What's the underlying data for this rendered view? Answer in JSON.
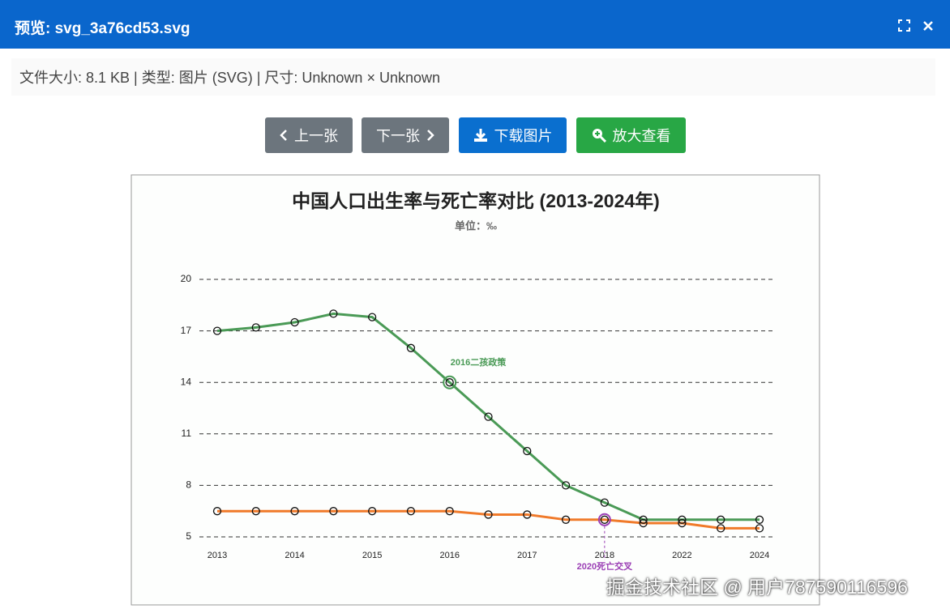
{
  "dialog": {
    "title": "预览: svg_3a76cd53.svg",
    "info": "文件大小: 8.1 KB | 类型: 图片 (SVG) | 尺寸: Unknown × Unknown",
    "buttons": [
      "上一张",
      "下一张",
      "下载图片",
      "放大查看"
    ],
    "watermark": "掘金技术社区 @ 用户787590116596"
  },
  "chart_data": {
    "type": "line",
    "title": "中国人口出生率与死亡率对比 (2013-2024年)",
    "subtitle": "单位：‰",
    "categories": [
      "2013",
      null,
      "2014",
      null,
      "2015",
      null,
      "2016",
      null,
      "2017",
      null,
      "2018",
      null,
      "2022",
      null,
      "2024"
    ],
    "series": [
      {
        "color": "#4a9a56",
        "values": [
          17,
          17.2,
          17.5,
          18,
          17.8,
          16,
          14,
          12,
          10,
          8,
          7,
          6,
          6,
          6,
          6
        ]
      },
      {
        "color": "#f07a2a",
        "values": [
          6.5,
          6.5,
          6.5,
          6.5,
          6.5,
          6.5,
          6.5,
          6.3,
          6.3,
          6,
          6,
          5.8,
          5.8,
          5.5,
          5.5
        ]
      }
    ],
    "ylim": [
      5,
      20
    ],
    "yticks": [
      5,
      8,
      11,
      14,
      17,
      20
    ],
    "grid": true,
    "annotations": [
      "2016二孩政策",
      "2020死亡交叉"
    ]
  }
}
